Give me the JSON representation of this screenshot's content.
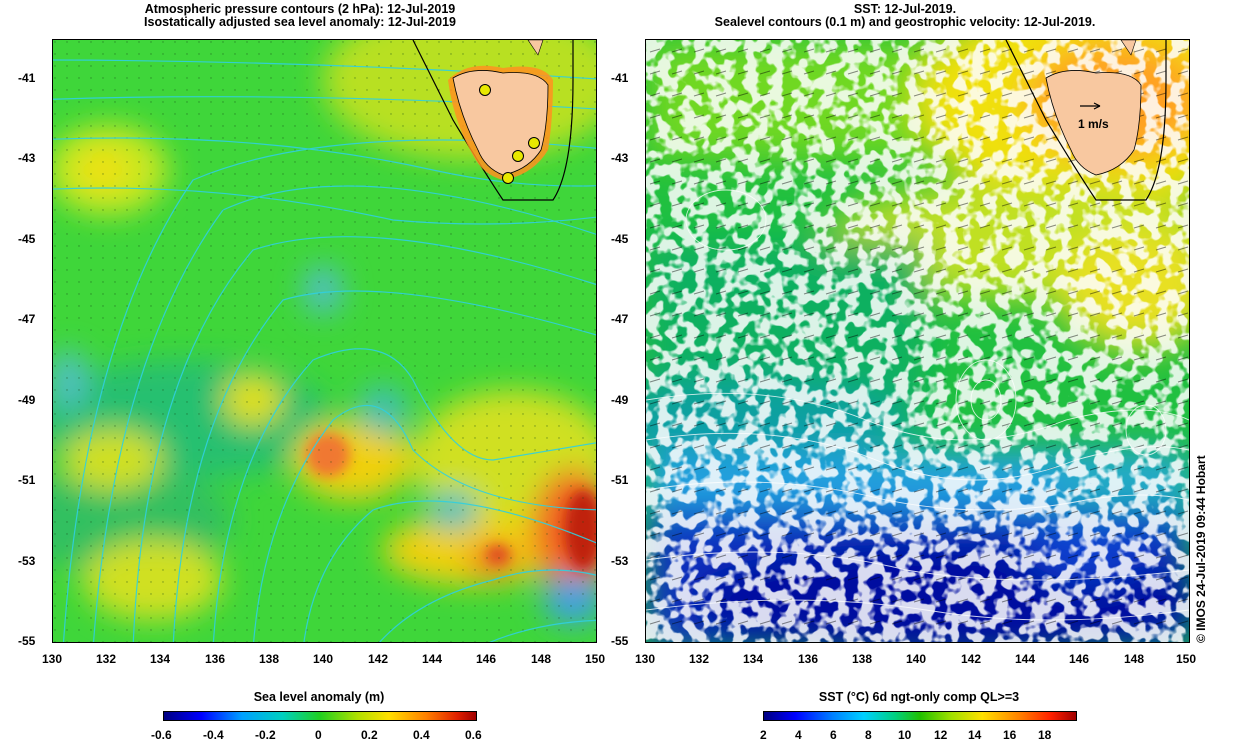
{
  "left_panel": {
    "title_line1": "Atmospheric pressure contours (2 hPa): 12-Jul-2019",
    "title_line2": "Isostatically adjusted sea level anomaly: 12-Jul-2019",
    "colorbar": {
      "label": "Sea level anomaly (m)",
      "ticks": [
        "-0.6",
        "-0.4",
        "-0.2",
        "0",
        "0.2",
        "0.4",
        "0.6"
      ]
    }
  },
  "right_panel": {
    "title_line1": "SST: 12-Jul-2019.",
    "title_line2": "Sealevel contours (0.1 m) and geostrophic velocity: 12-Jul-2019.",
    "velocity_key": "1 m/s",
    "colorbar": {
      "label": "SST (°C) 6d ngt-only comp QL>=3",
      "ticks": [
        "2",
        "4",
        "6",
        "8",
        "10",
        "12",
        "14",
        "16",
        "18"
      ]
    }
  },
  "axes": {
    "lat_ticks": [
      "-41",
      "-43",
      "-45",
      "-47",
      "-49",
      "-51",
      "-53",
      "-55"
    ],
    "lon_ticks": [
      "130",
      "132",
      "134",
      "136",
      "138",
      "140",
      "142",
      "144",
      "146",
      "148",
      "150"
    ]
  },
  "credit": "© IMOS 24-Jul-2019 09:44 Hobart",
  "colors": {
    "land": "#f8c8a0",
    "sla_scale": [
      "#000080",
      "#0040ff",
      "#00c0ff",
      "#00e0a0",
      "#60e000",
      "#f0f000",
      "#ffa000",
      "#ff4000",
      "#a00000"
    ],
    "sst_scale": [
      "#000080",
      "#0000ff",
      "#0080ff",
      "#00d0ff",
      "#00d080",
      "#20c000",
      "#a0e000",
      "#ffe000",
      "#ff8000",
      "#ff2000",
      "#a00000"
    ]
  }
}
